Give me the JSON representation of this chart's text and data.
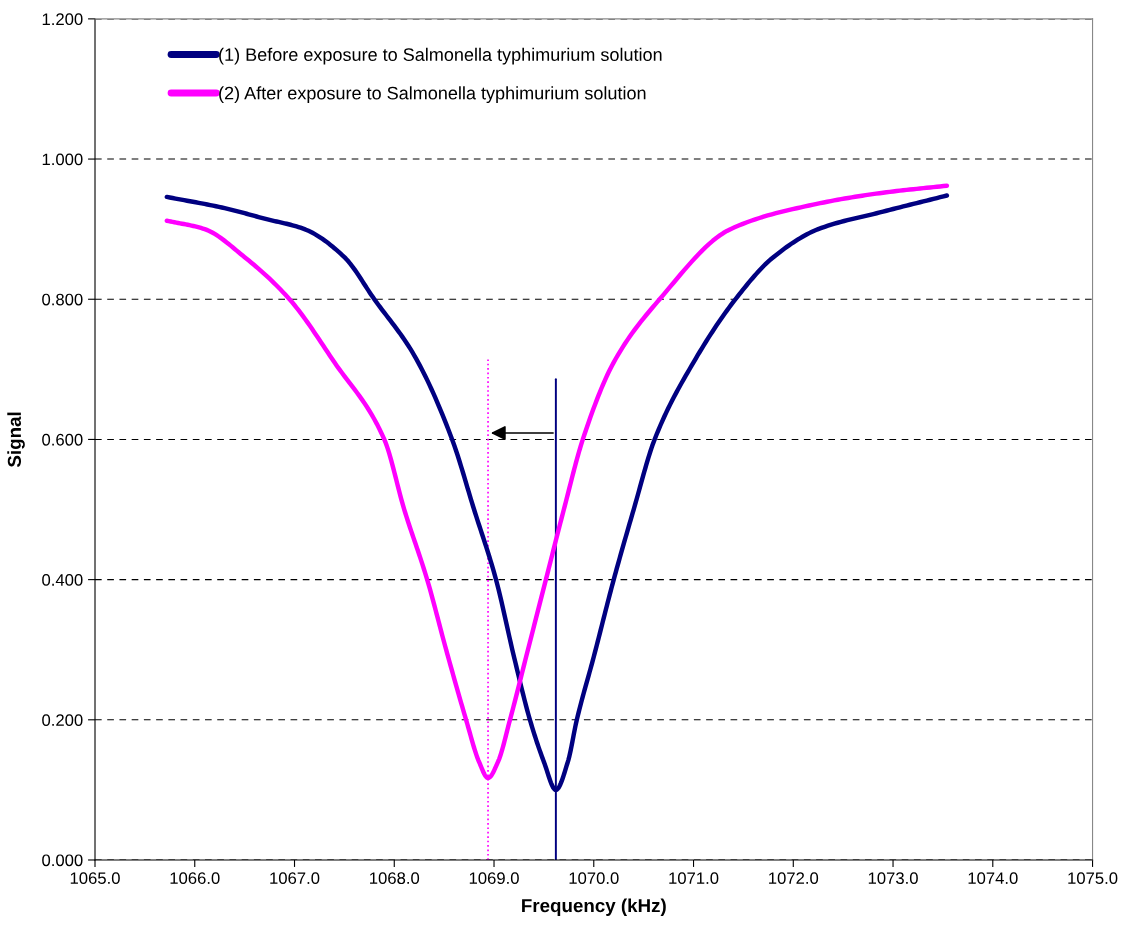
{
  "chart_data": {
    "type": "line",
    "xlabel": "Frequency (kHz)",
    "ylabel": "Signal",
    "xlim": [
      1065.0,
      1075.0
    ],
    "ylim": [
      0,
      1.2
    ],
    "xticks": [
      {
        "value": 1065,
        "label": "1065.0"
      },
      {
        "value": 1066,
        "label": "1066.0"
      },
      {
        "value": 1067,
        "label": "1067.0"
      },
      {
        "value": 1068,
        "label": "1068.0"
      },
      {
        "value": 1069,
        "label": "1069.0"
      },
      {
        "value": 1070,
        "label": "1070.0"
      },
      {
        "value": 1071,
        "label": "1071.0"
      },
      {
        "value": 1072,
        "label": "1072.0"
      },
      {
        "value": 1073,
        "label": "1073.0"
      },
      {
        "value": 1074,
        "label": "1074.0"
      },
      {
        "value": 1075,
        "label": "1075.0"
      }
    ],
    "yticks": [
      {
        "value": 0,
        "label": "0.000"
      },
      {
        "value": 0.2,
        "label": "0.200"
      },
      {
        "value": 0.4,
        "label": "0.400"
      },
      {
        "value": 0.6,
        "label": "0.600"
      },
      {
        "value": 0.8,
        "label": "0.800"
      },
      {
        "value": 1.0,
        "label": "1.000"
      },
      {
        "value": 1.2,
        "label": "1.200"
      }
    ],
    "grid": "y",
    "legend": "top left",
    "marker": "none",
    "series": [
      {
        "name": "(1) Before exposure to Salmonella typhimurium solution",
        "color": "#000080",
        "x": [
          1065.72,
          1066.3,
          1066.7,
          1067.1,
          1067.5,
          1067.8,
          1068.2,
          1068.58,
          1068.8,
          1069.02,
          1069.2,
          1069.36,
          1069.5,
          1069.62,
          1069.74,
          1069.83,
          1070.0,
          1070.2,
          1070.4,
          1070.61,
          1071.0,
          1071.42,
          1071.8,
          1072.25,
          1072.9,
          1073.54
        ],
        "values": [
          0.946,
          0.93,
          0.915,
          0.9,
          0.86,
          0.8,
          0.72,
          0.6,
          0.5,
          0.4,
          0.29,
          0.2,
          0.14,
          0.1,
          0.14,
          0.2,
          0.29,
          0.4,
          0.5,
          0.6,
          0.71,
          0.8,
          0.86,
          0.9,
          0.925,
          0.948
        ]
      },
      {
        "name": "(2) After exposure to Salmonella typhimurium solution",
        "color": "#ff00ff",
        "x": [
          1065.72,
          1066.1,
          1066.5,
          1066.95,
          1067.4,
          1067.9,
          1068.1,
          1068.33,
          1068.52,
          1068.72,
          1068.85,
          1068.94,
          1069.04,
          1069.16,
          1069.34,
          1069.52,
          1069.7,
          1069.89,
          1070.2,
          1070.66,
          1071.37,
          1072.2,
          1072.9,
          1073.54
        ],
        "values": [
          0.912,
          0.9,
          0.86,
          0.8,
          0.71,
          0.6,
          0.5,
          0.4,
          0.3,
          0.2,
          0.14,
          0.117,
          0.14,
          0.2,
          0.3,
          0.4,
          0.5,
          0.6,
          0.71,
          0.8,
          0.9,
          0.935,
          0.952,
          0.962
        ]
      },
      {
        "color": "#000080",
        "x": [
          1069.62,
          1069.62
        ],
        "values": [
          0,
          0.686
        ]
      },
      {
        "color": "#ff00ff",
        "x": [
          1068.94,
          1068.94
        ],
        "values": [
          0,
          0.714
        ],
        "line_style": "dotted"
      }
    ]
  }
}
